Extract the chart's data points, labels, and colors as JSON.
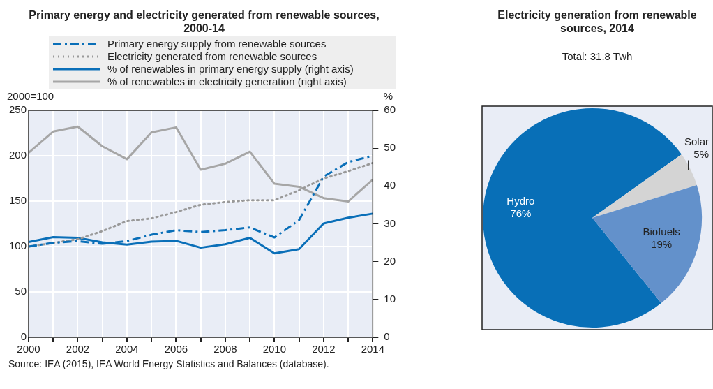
{
  "chart_data": [
    {
      "type": "line",
      "title": "Primary energy and electricity generated from renewable sources, 2000-14",
      "ylabel": "2000=100",
      "y2label": "%",
      "legend": "top",
      "grid": true,
      "marker": "none",
      "x": [
        2000,
        2001,
        2002,
        2003,
        2004,
        2005,
        2006,
        2007,
        2008,
        2009,
        2010,
        2011,
        2012,
        2013,
        2014
      ],
      "xlim": [
        2000,
        2014
      ],
      "xticks": [
        2000,
        {
          "value": 2001,
          "label": null
        },
        2002,
        {
          "value": 2003,
          "label": null
        },
        2004,
        {
          "value": 2005,
          "label": null
        },
        2006,
        {
          "value": 2007,
          "label": null
        },
        2008,
        {
          "value": 2009,
          "label": null
        },
        2010,
        {
          "value": 2011,
          "label": null
        },
        2012,
        {
          "value": 2013,
          "label": null
        },
        2014
      ],
      "ylim": [
        0,
        250
      ],
      "yticks": [
        0,
        50,
        100,
        150,
        200,
        250
      ],
      "y2lim": [
        0,
        60
      ],
      "y2ticks": [
        0,
        10,
        20,
        30,
        40,
        50,
        60
      ],
      "series": [
        {
          "name": "Primary energy supply from renewable sources",
          "color": "#0a6fb8",
          "line_style": "dashed",
          "values": [
            100,
            104,
            106,
            103,
            106,
            113,
            118,
            116,
            118,
            121,
            110,
            129,
            177,
            193,
            200
          ]
        },
        {
          "name": "Electricity generated from renewable sources",
          "color": "#999999",
          "line_style": "dotted",
          "values": [
            100,
            104,
            108,
            117,
            128,
            131,
            138,
            146,
            149,
            151,
            151,
            162,
            175,
            183,
            192
          ]
        },
        {
          "name": "% of renewables in primary energy supply (right axis)",
          "color": "#0a6fb8",
          "line_style": "solid",
          "axis": "y2",
          "values": [
            25.2,
            26.5,
            26.3,
            25.1,
            24.5,
            25.3,
            25.5,
            23.7,
            24.6,
            26.3,
            22.2,
            23.3,
            30.1,
            31.6,
            32.7
          ]
        },
        {
          "name": "% of renewables in electricity generation (right axis)",
          "color": "#a6a6a6",
          "line_style": "solid",
          "axis": "y2",
          "values": [
            48.8,
            54.4,
            55.7,
            50.5,
            47.1,
            54.2,
            55.5,
            44.3,
            45.9,
            49.1,
            40.6,
            39.8,
            36.8,
            35.9,
            41.7
          ]
        }
      ],
      "annotations": [
        "Source: IEA (2015), IEA World Energy Statistics and Balances (database)."
      ]
    },
    {
      "type": "pie",
      "title": "Electricity generation from renewable sources, 2014",
      "subtitle": "Total: 31.8 Twh",
      "categories": [
        "Hydro",
        "Solar",
        "Biofuels"
      ],
      "values": [
        76,
        5,
        19
      ],
      "colors": [
        "#086fb7",
        "#d4d4d4",
        "#6391cb"
      ],
      "value_labels": [
        "76%",
        "5%",
        "19%"
      ]
    }
  ]
}
